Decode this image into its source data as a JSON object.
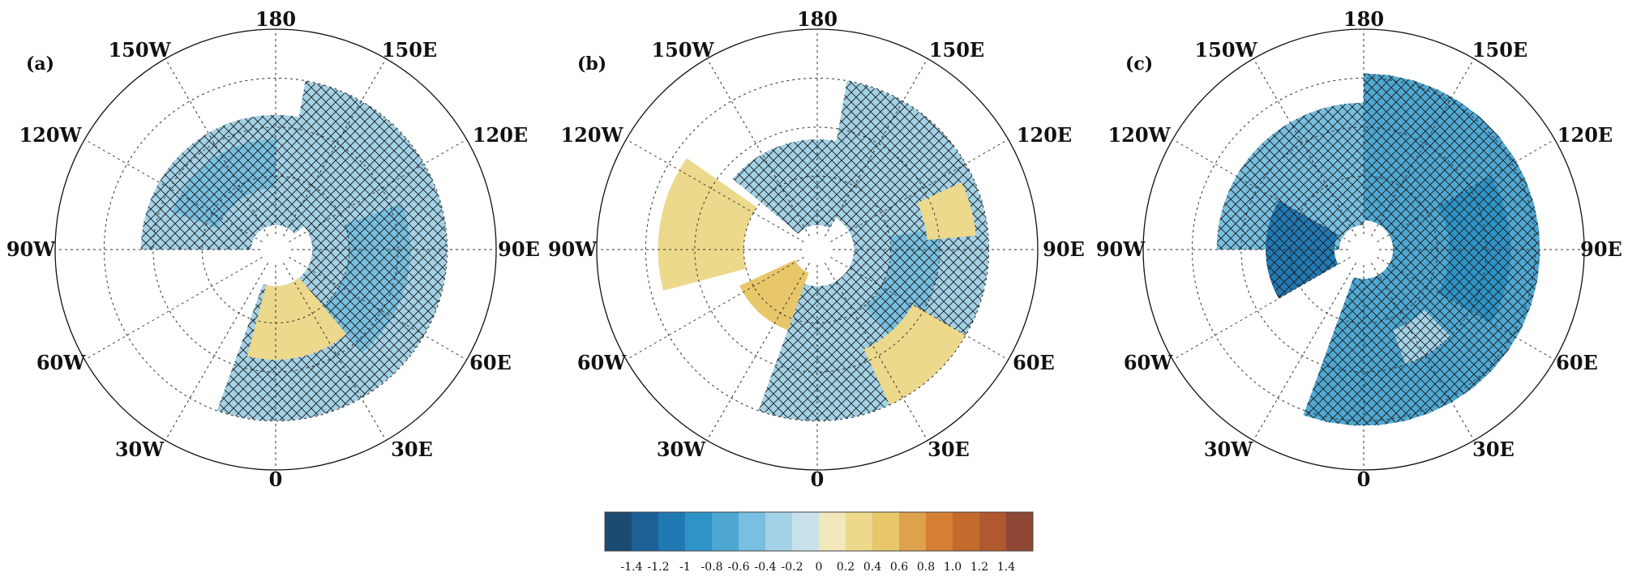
{
  "panels": [
    {
      "tag": "(a)",
      "lon_labels": {
        "top": "180",
        "p150e": "150E",
        "p120e": "120E",
        "p90e": "90E",
        "p60e": "60E",
        "p30e": "30E",
        "bottom": "0",
        "p30w": "30W",
        "p60w": "60W",
        "p90w": "90W",
        "p120w": "120W",
        "p150w": "150W"
      },
      "patches": [
        {
          "lon0": 130,
          "lon1": 270,
          "lat0": 35,
          "lat1": 80,
          "value": -0.3,
          "hatched": true
        },
        {
          "lon0": 180,
          "lon1": 250,
          "lat0": 45,
          "lat1": 65,
          "value": -0.5,
          "hatched": true
        },
        {
          "lon0": -20,
          "lon1": 170,
          "lat0": 20,
          "lat1": 75,
          "value": -0.4,
          "hatched": true
        },
        {
          "lon0": 40,
          "lon1": 110,
          "lat0": 35,
          "lat1": 60,
          "value": -0.6,
          "hatched": true
        },
        {
          "lon0": -15,
          "lon1": 40,
          "lat0": 45,
          "lat1": 75,
          "value": 0.2,
          "hatched": false
        }
      ]
    },
    {
      "tag": "(b)",
      "lon_labels": {
        "top": "180",
        "p150e": "150E",
        "p120e": "120E",
        "p90e": "90E",
        "p60e": "60E",
        "p30e": "30E",
        "bottom": "0",
        "p30w": "30W",
        "p60w": "60W",
        "p90w": "90W",
        "p120w": "120W",
        "p150w": "150W"
      },
      "patches": [
        {
          "lon0": 150,
          "lon1": 230,
          "lat0": 45,
          "lat1": 80,
          "value": -0.3,
          "hatched": true
        },
        {
          "lon0": 235,
          "lon1": 285,
          "lat0": 25,
          "lat1": 60,
          "value": 0.3,
          "hatched": false
        },
        {
          "lon0": 295,
          "lon1": 340,
          "lat0": 55,
          "lat1": 80,
          "value": 0.5,
          "hatched": false
        },
        {
          "lon0": -20,
          "lon1": 170,
          "lat0": 20,
          "lat1": 75,
          "value": -0.3,
          "hatched": true
        },
        {
          "lon0": 40,
          "lon1": 100,
          "lat0": 40,
          "lat1": 60,
          "value": -0.5,
          "hatched": true
        },
        {
          "lon0": 25,
          "lon1": 60,
          "lat0": 20,
          "lat1": 45,
          "value": 0.3,
          "hatched": false
        },
        {
          "lon0": 95,
          "lon1": 115,
          "lat0": 25,
          "lat1": 45,
          "value": 0.2,
          "hatched": false
        }
      ]
    },
    {
      "tag": "(c)",
      "lon_labels": {
        "top": "180",
        "p150e": "150E",
        "p120e": "120E",
        "p90e": "90E",
        "p60e": "60E",
        "p30e": "30E",
        "bottom": "0",
        "p30w": "30W",
        "p60w": "60W",
        "p90w": "90W",
        "p120w": "120W",
        "p150w": "150W"
      },
      "patches": [
        {
          "lon0": 180,
          "lon1": 270,
          "lat0": 30,
          "lat1": 80,
          "value": -0.5,
          "hatched": true
        },
        {
          "lon0": 240,
          "lon1": 300,
          "lat0": 50,
          "lat1": 78,
          "value": -1.1,
          "hatched": true
        },
        {
          "lon0": -20,
          "lon1": 180,
          "lat0": 18,
          "lat1": 78,
          "value": -0.8,
          "hatched": true
        },
        {
          "lon0": 60,
          "lon1": 120,
          "lat0": 30,
          "lat1": 55,
          "value": -0.9,
          "hatched": true
        },
        {
          "lon0": 20,
          "lon1": 45,
          "lat0": 40,
          "lat1": 55,
          "value": -0.3,
          "hatched": true
        }
      ]
    }
  ],
  "colorbar": {
    "colors": [
      "#1c4a70",
      "#1e6196",
      "#2179b4",
      "#2e94c8",
      "#4ea8d3",
      "#78bfe0",
      "#a3d2e6",
      "#c9e1ea",
      "#f1e7bb",
      "#ecd98c",
      "#e8c76a",
      "#dea24c",
      "#d47f33",
      "#c56a2d",
      "#b0582e",
      "#8e4735"
    ],
    "tick_labels": [
      "-1.4",
      "-1.2",
      "-1",
      "-0.8",
      "-0.6",
      "-0.4",
      "-0.2",
      "0",
      "0.2",
      "0.4",
      "0.6",
      "0.8",
      "1.0",
      "1.2",
      "1.4"
    ]
  }
}
